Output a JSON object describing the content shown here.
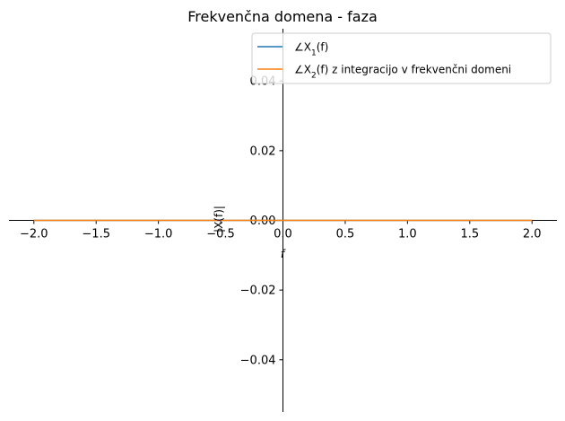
{
  "chart_data": {
    "type": "line",
    "title": "Frekvenčna domena - faza",
    "xlabel": "f",
    "ylabel": "|X(f)|",
    "xlim": [
      -2.2,
      2.2
    ],
    "ylim": [
      -0.055,
      0.055
    ],
    "xticks": [
      -2.0,
      -1.5,
      -1.0,
      -0.5,
      0.0,
      0.5,
      1.0,
      1.5,
      2.0
    ],
    "xtick_labels": [
      "−2.0",
      "−1.5",
      "−1.0",
      "−0.5",
      "0.0",
      "0.5",
      "1.0",
      "1.5",
      "2.0"
    ],
    "yticks": [
      -0.04,
      -0.02,
      0.0,
      0.02,
      0.04
    ],
    "ytick_labels": [
      "−0.04",
      "−0.02",
      "0.00",
      "0.02",
      "0.04"
    ],
    "grid": false,
    "legend_position": "top-right",
    "series": [
      {
        "name_prefix": "∠X",
        "name_sub": "1",
        "name_suffix": "(f)",
        "color": "#1f77b4",
        "x": [
          -2.0,
          2.0
        ],
        "y": [
          0,
          0
        ]
      },
      {
        "name_prefix": "∠X",
        "name_sub": "2",
        "name_suffix": "(f) z integracijo v frekvenčni domeni",
        "color": "#ff7f0e",
        "x": [
          -2.0,
          2.0
        ],
        "y": [
          0,
          0
        ]
      }
    ]
  }
}
